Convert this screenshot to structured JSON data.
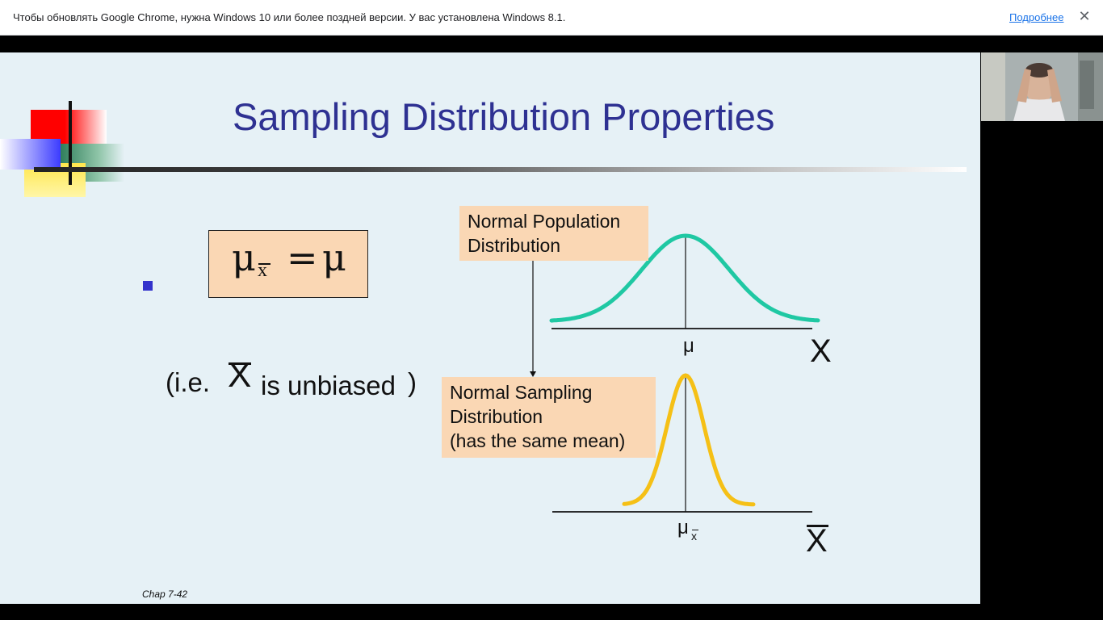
{
  "infobar": {
    "message": "Чтобы обновлять Google Chrome, нужна Windows 10 или более поздней версии. У вас установлена Windows 8.1.",
    "link": "Подробнее",
    "close": "✕"
  },
  "slide": {
    "title": "Sampling Distribution Properties",
    "formula": {
      "lhs_symbol": "μ",
      "subscript": "x",
      "equals": "=",
      "rhs_symbol": "μ"
    },
    "ie_prefix": "(i.e.",
    "ie_symbol": "X",
    "ie_suffix": "is unbiased",
    "ie_close": ")",
    "population_label": {
      "line1": "Normal Population",
      "line2": "Distribution"
    },
    "sampling_label": {
      "line1": "Normal Sampling",
      "line2": "Distribution",
      "line3": "(has the same mean)"
    },
    "graph": {
      "top_mean_label": "μ",
      "top_axis_label": "X",
      "bottom_mean_label": "μ",
      "bottom_mean_subscript": "x",
      "bottom_axis_label": "X",
      "population_curve_color": "#1fc8a3",
      "sampling_curve_color": "#f5c016"
    },
    "footer": "Chap 7-42"
  },
  "colors": {
    "title": "#2e3192",
    "slide_bg": "#e6f1f6",
    "label_bg": "#fad7b4",
    "bullet": "#3333cc"
  }
}
